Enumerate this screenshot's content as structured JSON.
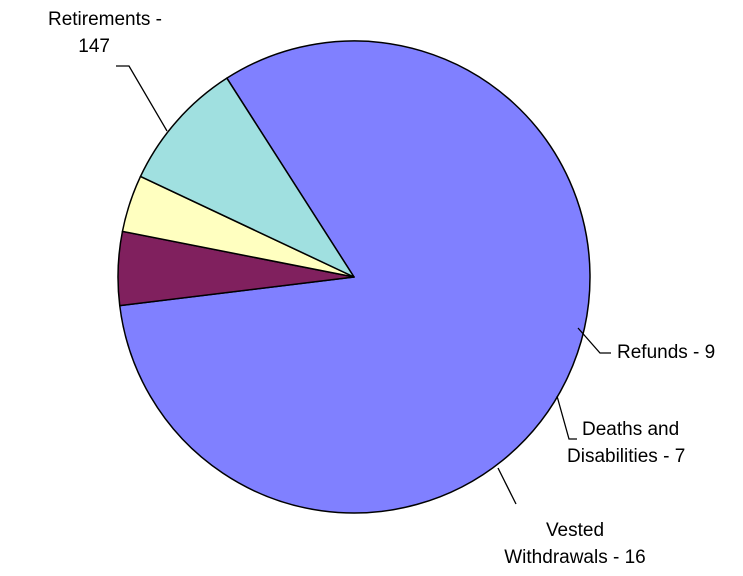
{
  "chart_data": {
    "type": "pie",
    "title": "",
    "slices": [
      {
        "label": "Retirements",
        "value": 147,
        "color": "#8080FF",
        "label_lines": [
          "Retirements -",
          "147"
        ]
      },
      {
        "label": "Refunds",
        "value": 9,
        "color": "#80205E",
        "label_lines": [
          "Refunds - 9"
        ]
      },
      {
        "label": "Deaths and Disabilities",
        "value": 7,
        "color": "#FFFFC0",
        "label_lines": [
          "Deaths and",
          "Disabilities - 7"
        ]
      },
      {
        "label": "Vested Withdrawals",
        "value": 16,
        "color": "#A0E0E0",
        "label_lines": [
          "Vested",
          "Withdrawals - 16"
        ]
      }
    ],
    "legend": "none",
    "label_style": "callout-leader-lines"
  }
}
